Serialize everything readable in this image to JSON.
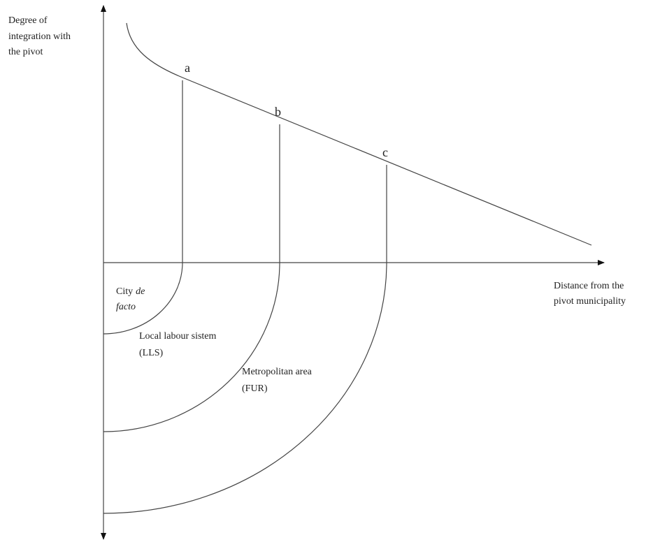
{
  "y_axis_label": [
    "Degree of",
    "integration with",
    "the pivot"
  ],
  "x_axis_label": [
    "Distance from the",
    "pivot municipality"
  ],
  "points": [
    "a",
    "b",
    "c"
  ],
  "regions": [
    {
      "lines": [
        "City",
        "de",
        "facto"
      ]
    },
    {
      "lines": [
        "Local labour sistem",
        "(LLS)"
      ]
    },
    {
      "lines": [
        "Metropolitan area",
        "(FUR)"
      ]
    }
  ]
}
